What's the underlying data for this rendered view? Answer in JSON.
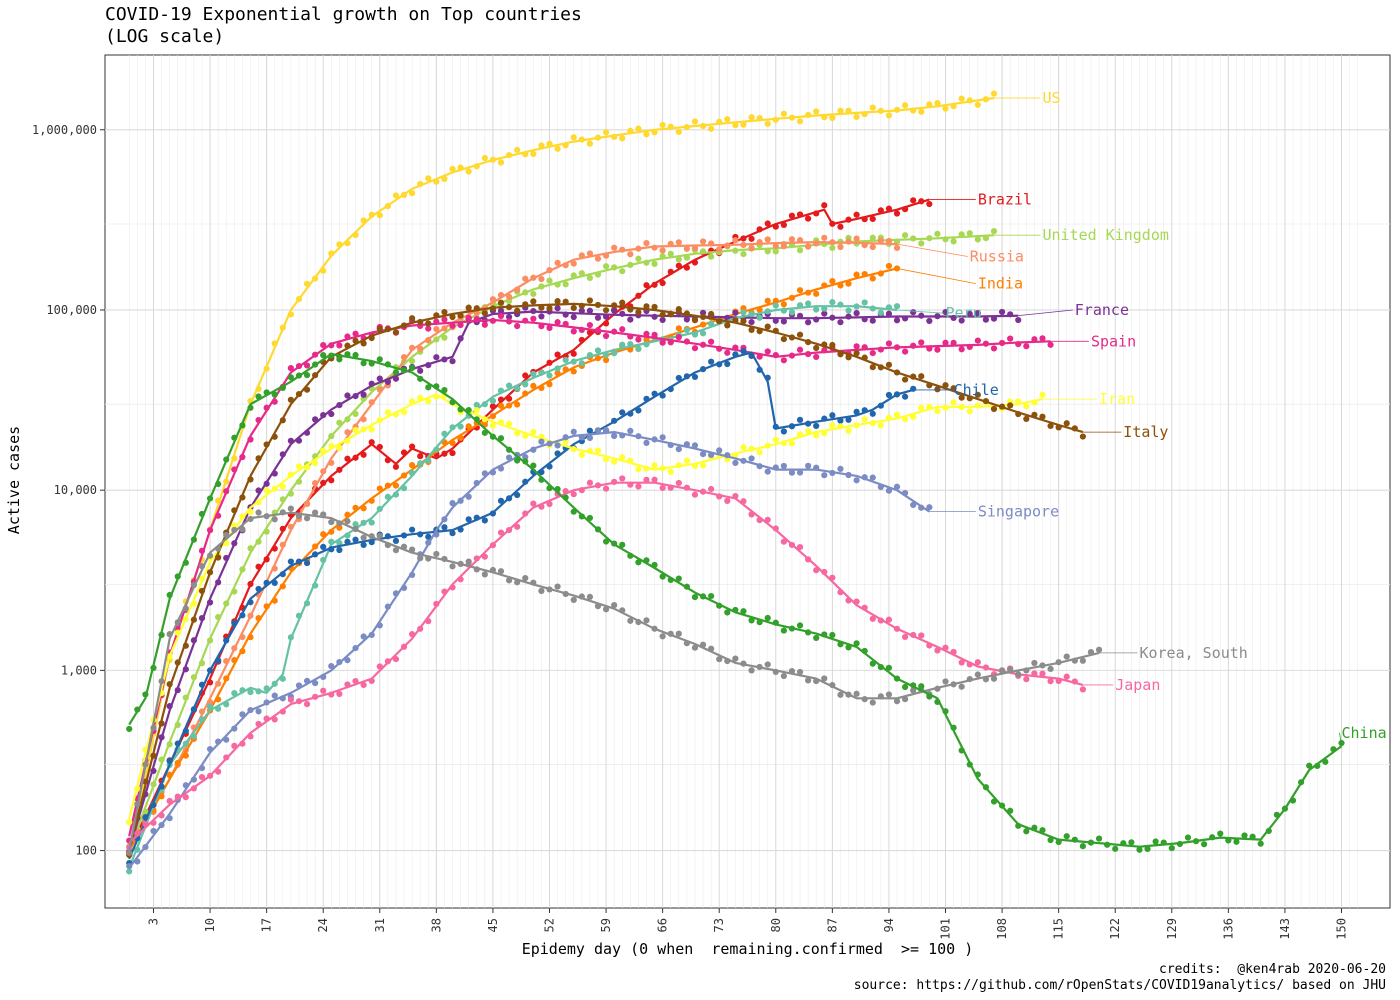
{
  "title": "COVID-19 Exponential growth on Top countries",
  "subtitle": "(LOG scale)",
  "xlabel": "Epidemy day (0 when  remaining.confirmed  >= 100 )",
  "ylabel": "Active cases",
  "credits": "credits:  @ken4rab 2020-06-20",
  "source": "source: https://github.com/rOpenStats/COVID19analytics/ based on JHU",
  "chart_data": {
    "type": "line",
    "yscale": "log",
    "xlim": [
      -3,
      156
    ],
    "ylim": [
      48,
      2600000
    ],
    "xticks": [
      3,
      10,
      17,
      24,
      31,
      38,
      45,
      52,
      59,
      66,
      73,
      80,
      87,
      94,
      101,
      108,
      115,
      122,
      129,
      136,
      143,
      150
    ],
    "yticks": [
      100,
      1000,
      10000,
      100000,
      1000000
    ],
    "ytick_labels": [
      "100",
      "1,000",
      "10,000",
      "100,000",
      "1,000,000"
    ],
    "grid": true,
    "legend": "labels at line ends",
    "series": [
      {
        "name": "US",
        "color": "#FFD92F",
        "x": [
          0,
          5,
          10,
          15,
          20,
          25,
          30,
          35,
          40,
          45,
          50,
          55,
          60,
          65,
          70,
          75,
          80,
          85,
          90,
          95,
          100,
          107
        ],
        "y": [
          90,
          1200,
          6000,
          30000,
          100000,
          200000,
          330000,
          470000,
          580000,
          680000,
          770000,
          860000,
          930000,
          1000000,
          1050000,
          1100000,
          1150000,
          1200000,
          1240000,
          1280000,
          1350000,
          1500000
        ]
      },
      {
        "name": "Brazil",
        "color": "#E41A1C",
        "x": [
          0,
          5,
          10,
          15,
          20,
          25,
          30,
          33,
          35,
          38,
          40,
          45,
          50,
          55,
          60,
          65,
          70,
          75,
          80,
          86,
          87,
          90,
          95,
          99
        ],
        "y": [
          100,
          300,
          900,
          3000,
          7000,
          12000,
          18000,
          14000,
          17000,
          15000,
          17000,
          28000,
          45000,
          60000,
          95000,
          140000,
          190000,
          240000,
          300000,
          360000,
          300000,
          320000,
          360000,
          410000
        ]
      },
      {
        "name": "United Kingdom",
        "color": "#A6D854",
        "x": [
          0,
          5,
          10,
          15,
          20,
          25,
          30,
          35,
          40,
          45,
          50,
          55,
          60,
          65,
          70,
          75,
          80,
          85,
          90,
          95,
          100,
          107
        ],
        "y": [
          100,
          400,
          1500,
          4500,
          10000,
          20000,
          35000,
          55000,
          80000,
          105000,
          130000,
          150000,
          170000,
          190000,
          205000,
          215000,
          220000,
          230000,
          240000,
          245000,
          250000,
          260000
        ]
      },
      {
        "name": "Russia",
        "color": "#FC8D62",
        "x": [
          0,
          5,
          10,
          15,
          20,
          25,
          30,
          35,
          40,
          45,
          50,
          55,
          60,
          65,
          70,
          75,
          80,
          85,
          90,
          95
        ],
        "y": [
          100,
          250,
          700,
          2000,
          6000,
          15000,
          30000,
          60000,
          85000,
          110000,
          150000,
          190000,
          210000,
          225000,
          228000,
          230000,
          235000,
          238000,
          236000,
          232000
        ]
      },
      {
        "name": "India",
        "color": "#FF7F00",
        "x": [
          0,
          5,
          10,
          15,
          20,
          25,
          30,
          35,
          40,
          45,
          50,
          55,
          60,
          65,
          70,
          75,
          80,
          85,
          90,
          95
        ],
        "y": [
          100,
          250,
          600,
          1600,
          3500,
          6000,
          9000,
          13000,
          19000,
          26000,
          36000,
          48000,
          58000,
          68000,
          80000,
          95000,
          110000,
          130000,
          150000,
          170000
        ]
      },
      {
        "name": "France",
        "color": "#7B3294",
        "x": [
          0,
          5,
          10,
          15,
          20,
          25,
          30,
          35,
          40,
          42,
          45,
          50,
          55,
          60,
          65,
          70,
          75,
          80,
          85,
          90,
          95,
          100,
          105,
          110
        ],
        "y": [
          100,
          600,
          2500,
          8000,
          18000,
          28000,
          38000,
          47000,
          55000,
          85000,
          95000,
          98000,
          96000,
          94000,
          93000,
          92000,
          91000,
          90000,
          90000,
          91000,
          92000,
          92000,
          92000,
          93000
        ]
      },
      {
        "name": "Peru",
        "color": "#66C2A5",
        "x": [
          0,
          5,
          10,
          15,
          17,
          19,
          20,
          25,
          30,
          35,
          40,
          45,
          50,
          55,
          60,
          65,
          70,
          75,
          80,
          85,
          90,
          95
        ],
        "y": [
          80,
          300,
          600,
          800,
          750,
          950,
          1500,
          5000,
          7000,
          12000,
          22000,
          33000,
          42000,
          52000,
          60000,
          67000,
          75000,
          90000,
          100000,
          105000,
          105000,
          100000
        ]
      },
      {
        "name": "Spain",
        "color": "#E7298A",
        "x": [
          0,
          5,
          10,
          15,
          20,
          25,
          30,
          35,
          40,
          45,
          50,
          55,
          60,
          65,
          70,
          75,
          80,
          85,
          90,
          95,
          100,
          105,
          110,
          114
        ],
        "y": [
          120,
          1200,
          6000,
          20000,
          45000,
          65000,
          75000,
          82000,
          85000,
          88000,
          85000,
          80000,
          75000,
          70000,
          65000,
          60000,
          55000,
          58000,
          60000,
          62000,
          63000,
          64000,
          66000,
          67000
        ]
      },
      {
        "name": "Chile",
        "color": "#2166AC",
        "x": [
          0,
          5,
          10,
          15,
          20,
          25,
          30,
          35,
          40,
          45,
          50,
          55,
          60,
          65,
          70,
          75,
          77,
          79,
          80,
          85,
          90,
          92,
          95,
          97
        ],
        "y": [
          90,
          300,
          1000,
          2500,
          3800,
          4800,
          5300,
          5700,
          6000,
          7500,
          12000,
          18000,
          24000,
          33000,
          45000,
          55000,
          58000,
          40000,
          22000,
          24000,
          26000,
          28000,
          34000,
          36000
        ]
      },
      {
        "name": "Iran",
        "color": "#FFFF33",
        "x": [
          0,
          5,
          10,
          15,
          20,
          25,
          30,
          35,
          38,
          40,
          45,
          50,
          55,
          60,
          65,
          70,
          75,
          80,
          85,
          90,
          95,
          100,
          105,
          110,
          113
        ],
        "y": [
          150,
          1200,
          4000,
          8000,
          12000,
          17000,
          23000,
          30000,
          34000,
          30000,
          24000,
          20000,
          17000,
          15000,
          13000,
          14000,
          16000,
          18000,
          21000,
          23000,
          25000,
          29000,
          29000,
          30000,
          32000
        ]
      },
      {
        "name": "Italy",
        "color": "#8C510A",
        "x": [
          0,
          5,
          10,
          15,
          20,
          25,
          30,
          35,
          40,
          45,
          50,
          55,
          60,
          65,
          70,
          75,
          80,
          85,
          90,
          95,
          100,
          105,
          110,
          115,
          118
        ],
        "y": [
          100,
          800,
          3500,
          12000,
          30000,
          55000,
          72000,
          85000,
          95000,
          103000,
          106000,
          108000,
          105000,
          100000,
          93000,
          85000,
          75000,
          65000,
          55000,
          45000,
          38000,
          32000,
          27000,
          23000,
          21000
        ]
      },
      {
        "name": "Singapore",
        "color": "#7B8CC4",
        "x": [
          0,
          5,
          10,
          15,
          20,
          25,
          30,
          35,
          38,
          40,
          45,
          50,
          55,
          60,
          65,
          70,
          75,
          80,
          85,
          90,
          95,
          99
        ],
        "y": [
          80,
          160,
          350,
          600,
          750,
          1000,
          1600,
          3500,
          6000,
          8000,
          13000,
          17000,
          20000,
          21000,
          19000,
          17000,
          15000,
          13000,
          13000,
          12000,
          10000,
          7600
        ]
      },
      {
        "name": "Japan",
        "color": "#F768A1",
        "x": [
          0,
          5,
          10,
          15,
          20,
          25,
          30,
          35,
          40,
          45,
          50,
          55,
          60,
          65,
          70,
          75,
          80,
          85,
          90,
          95,
          100,
          105,
          110,
          115,
          118
        ],
        "y": [
          110,
          180,
          260,
          450,
          650,
          750,
          900,
          1500,
          3000,
          5000,
          8000,
          10000,
          11000,
          11000,
          10000,
          9000,
          6000,
          3800,
          2300,
          1700,
          1350,
          1050,
          950,
          900,
          830
        ]
      },
      {
        "name": "Korea, South",
        "color": "#8C8C8C",
        "x": [
          0,
          5,
          10,
          15,
          20,
          25,
          30,
          35,
          40,
          45,
          50,
          55,
          60,
          65,
          70,
          75,
          80,
          85,
          90,
          95,
          100,
          105,
          110,
          115,
          120
        ],
        "y": [
          100,
          1500,
          4500,
          7000,
          7500,
          7000,
          5500,
          4500,
          4000,
          3500,
          3000,
          2600,
          2200,
          1700,
          1400,
          1100,
          1000,
          900,
          700,
          700,
          800,
          900,
          1000,
          1100,
          1250
        ]
      },
      {
        "name": "China",
        "color": "#33A02C",
        "x": [
          0,
          2,
          5,
          10,
          15,
          20,
          25,
          30,
          35,
          40,
          45,
          50,
          55,
          60,
          65,
          70,
          75,
          80,
          85,
          90,
          95,
          100,
          105,
          110,
          115,
          120,
          125,
          130,
          135,
          140,
          143,
          146,
          150
        ],
        "y": [
          500,
          700,
          2500,
          9000,
          30000,
          40000,
          57000,
          52000,
          45000,
          32000,
          20000,
          13000,
          8000,
          5000,
          3700,
          2700,
          2100,
          1800,
          1600,
          1350,
          900,
          700,
          250,
          140,
          115,
          110,
          105,
          110,
          118,
          115,
          170,
          280,
          380
        ]
      }
    ]
  },
  "labels": [
    {
      "series": "US",
      "text": "US",
      "color": "#FFD92F",
      "x": 107,
      "y": 1500000,
      "lx": 113,
      "ly": 1500000
    },
    {
      "series": "Brazil",
      "text": "Brazil",
      "color": "#E41A1C",
      "x": 99,
      "y": 410000,
      "lx": 105,
      "ly": 410000
    },
    {
      "series": "United Kingdom",
      "text": "United Kingdom",
      "color": "#A6D854",
      "x": 107,
      "y": 260000,
      "lx": 113,
      "ly": 260000
    },
    {
      "series": "Russia",
      "text": "Russia",
      "color": "#FC8D62",
      "x": 95,
      "y": 232000,
      "lx": 104,
      "ly": 198000
    },
    {
      "series": "India",
      "text": "India",
      "color": "#FF7F00",
      "x": 95,
      "y": 170000,
      "lx": 105,
      "ly": 140000
    },
    {
      "series": "France",
      "text": "France",
      "color": "#7B3294",
      "x": 110,
      "y": 93000,
      "lx": 117,
      "ly": 100000
    },
    {
      "series": "Peru",
      "text": "Peru",
      "color": "#66C2A5",
      "x": 95,
      "y": 100000,
      "lx": 101,
      "ly": 96000
    },
    {
      "series": "Spain",
      "text": "Spain",
      "color": "#E7298A",
      "x": 114,
      "y": 67000,
      "lx": 119,
      "ly": 67000
    },
    {
      "series": "Chile",
      "text": "Chile",
      "color": "#2166AC",
      "x": 97,
      "y": 36000,
      "lx": 102,
      "ly": 36000
    },
    {
      "series": "Iran",
      "text": "Iran",
      "color": "#FFFF33",
      "x": 113,
      "y": 32000,
      "lx": 120,
      "ly": 32000
    },
    {
      "series": "Italy",
      "text": "Italy",
      "color": "#8C510A",
      "x": 118,
      "y": 21000,
      "lx": 123,
      "ly": 21000
    },
    {
      "series": "Singapore",
      "text": "Singapore",
      "color": "#7B8CC4",
      "x": 99,
      "y": 7600,
      "lx": 105,
      "ly": 7600
    },
    {
      "series": "Korea, South",
      "text": "Korea, South",
      "color": "#8C8C8C",
      "x": 120,
      "y": 1250,
      "lx": 125,
      "ly": 1250
    },
    {
      "series": "Japan",
      "text": "Japan",
      "color": "#F768A1",
      "x": 118,
      "y": 830,
      "lx": 122,
      "ly": 830
    },
    {
      "series": "China",
      "text": "China",
      "color": "#33A02C",
      "x": 150,
      "y": 380,
      "lx": 150,
      "ly": 450
    }
  ]
}
